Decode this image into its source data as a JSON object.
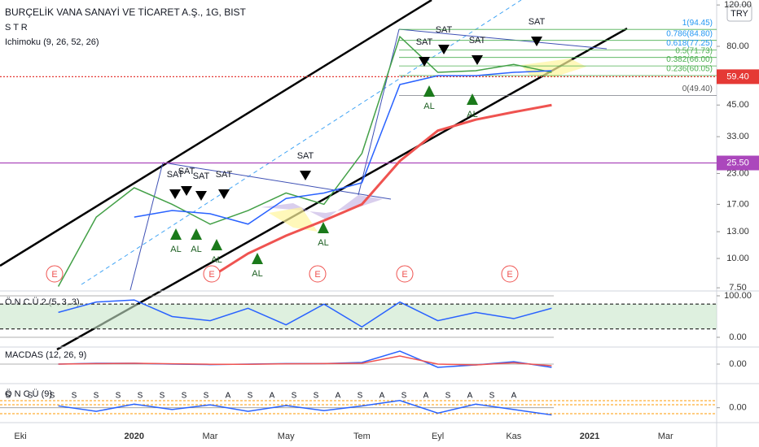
{
  "chart_data": [
    {
      "type": "line",
      "title": "BURÇELİK VANA SANAYİ VE TİCARET A.Ş., 1G, BIST",
      "indicators": [
        "S T R",
        "Ichimoku (9, 26, 52, 26)"
      ],
      "currency": "TRY",
      "log_scale": true,
      "categories": [
        "Eki",
        null,
        null,
        "2020",
        null,
        "Mar",
        null,
        "May",
        null,
        "Tem",
        null,
        "Eyl",
        null,
        "Kas",
        null,
        "2021",
        null,
        "Mar"
      ],
      "series": [
        {
          "color": "#43a047",
          "values": [
            null,
            7.6,
            15,
            20,
            17,
            14,
            16,
            19,
            17,
            28,
            88,
            62,
            63,
            67,
            62,
            null,
            null,
            null
          ]
        },
        {
          "color": "#2962ff",
          "values": [
            null,
            null,
            null,
            15,
            16,
            15.5,
            14,
            18,
            19,
            21,
            55,
            60,
            60,
            62,
            63,
            null,
            null,
            null
          ]
        },
        {
          "color": "#ef5350",
          "values": [
            null,
            null,
            null,
            null,
            null,
            8.3,
            10.5,
            12.5,
            14.5,
            17,
            26,
            35,
            39,
            42,
            45,
            null,
            null,
            null
          ]
        }
      ],
      "ylim": [
        7.33,
        126
      ],
      "yticks": [
        {
          "value": 120,
          "label": "120.00"
        },
        {
          "value": 80,
          "label": "80.00"
        },
        {
          "value": 45,
          "label": "45.00"
        },
        {
          "value": 33,
          "label": "33.00"
        },
        {
          "value": 23,
          "label": "23.00"
        },
        {
          "value": 17,
          "label": "17.00"
        },
        {
          "value": 13,
          "label": "13.00"
        },
        {
          "value": 10,
          "label": "10.00"
        },
        {
          "value": 7.5,
          "label": "7.50"
        }
      ],
      "price_lines": [
        {
          "value": 59.4,
          "label": "59.40",
          "color": "#e53935"
        },
        {
          "value": 25.5,
          "label": "25.50",
          "color": "#ab47bc"
        }
      ],
      "fib_levels": [
        {
          "value": 94.45,
          "label": "1(94.45)"
        },
        {
          "value": 84.8,
          "label": "0.786(84.80)"
        },
        {
          "value": 77.25,
          "label": "0.618(77.25)"
        },
        {
          "value": 71.73,
          "label": "0.5(71.73)"
        },
        {
          "value": 66,
          "label": "0.382(66.00)"
        },
        {
          "value": 60.05,
          "label": "0.236(60.05)"
        },
        {
          "value": 49.4,
          "label": "0(49.40)"
        }
      ],
      "sell_signals": [
        "SAT",
        "SAT",
        "SAT",
        "SAT",
        "SAT",
        "SAT",
        "SAT",
        "SAT",
        "SAT"
      ],
      "buy_signals": [
        "AL",
        "AL",
        "AL",
        "AL",
        "AL",
        "AL",
        "AL"
      ],
      "events": [
        "E",
        "E",
        "E",
        "E",
        "E"
      ]
    },
    {
      "type": "line",
      "title": "Ö N C Ü 2 (5, 3, 3)",
      "series": [
        {
          "color": "#2962ff",
          "values": [
            null,
            60,
            85,
            90,
            50,
            40,
            70,
            30,
            80,
            25,
            85,
            40,
            60,
            45,
            70,
            null,
            null,
            null
          ]
        }
      ],
      "ylim": [
        -19.6,
        117.6
      ],
      "yticks": [
        {
          "value": 100,
          "label": "100.00"
        },
        {
          "value": 0,
          "label": "0.00"
        }
      ],
      "levels": [
        80,
        20
      ]
    },
    {
      "type": "line",
      "title": "MACDAS (12, 26, 9)",
      "series": [
        {
          "color": "#2962ff",
          "values": [
            null,
            0,
            0.5,
            0.5,
            0,
            -0.3,
            0,
            0.3,
            0.3,
            1,
            8,
            -2,
            -0.5,
            1.5,
            -2,
            null,
            null,
            null
          ]
        },
        {
          "color": "#ef5350",
          "values": [
            null,
            0,
            0.3,
            0.5,
            0.2,
            -0.1,
            -0.1,
            0.2,
            0.3,
            0.5,
            5,
            0,
            -0.5,
            0.8,
            -1,
            null,
            null,
            null
          ]
        }
      ],
      "ylim": [
        -11,
        9
      ],
      "yticks": [
        {
          "value": 0,
          "label": "0.00"
        }
      ]
    },
    {
      "type": "line",
      "title": "Ö N C Ü (9)",
      "series": [
        {
          "color": "#2962ff",
          "values": [
            null,
            0.5,
            -1,
            1,
            -0.5,
            0.8,
            -1,
            0.6,
            -0.8,
            0.5,
            2,
            -1.5,
            1,
            -0.5,
            -2,
            null,
            null,
            null
          ]
        }
      ],
      "ylim": [
        -3,
        6
      ],
      "yticks": [
        {
          "value": 0,
          "label": "0.00"
        }
      ],
      "markers": [
        "S",
        "S",
        "S",
        "S",
        "S",
        "S",
        "S",
        "S",
        "S",
        "S",
        "A",
        "S",
        "A",
        "S",
        "S",
        "A",
        "S",
        "A",
        "S",
        "A",
        "S",
        "A",
        "S",
        "A"
      ]
    }
  ]
}
